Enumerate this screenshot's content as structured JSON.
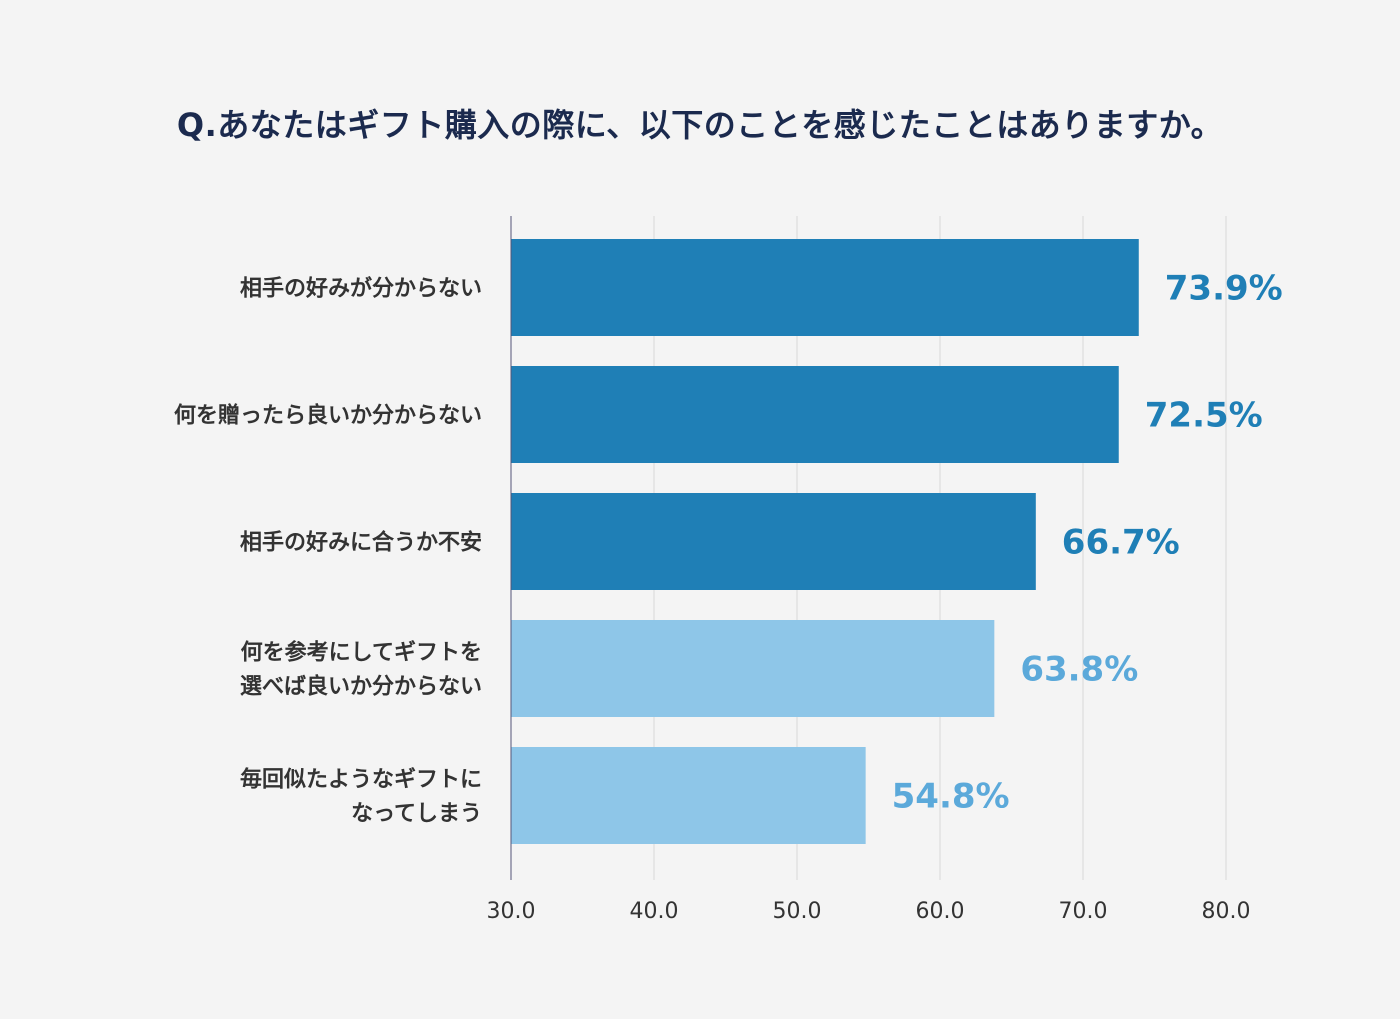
{
  "chart_data": {
    "type": "bar",
    "orientation": "horizontal",
    "title": "Q.あなたはギフト購入の際に、以下のことを感じたことはありますか。",
    "categories": [
      [
        "相手の好みが分からない"
      ],
      [
        "何を贈ったら良いか分からない"
      ],
      [
        "相手の好みに合うか不安"
      ],
      [
        "何を参考にしてギフトを",
        "選べば良いか分からない"
      ],
      [
        "毎回似たようなギフトに",
        "なってしまう"
      ]
    ],
    "values": [
      73.9,
      72.5,
      66.7,
      63.8,
      54.8
    ],
    "value_labels": [
      "73.9%",
      "72.5%",
      "66.7%",
      "63.8%",
      "54.8%"
    ],
    "highlighted": [
      true,
      true,
      true,
      false,
      false
    ],
    "xlim": [
      30,
      80
    ],
    "xticks": [
      "30.0",
      "40.0",
      "50.0",
      "60.0",
      "70.0",
      "80.0"
    ],
    "grid": true,
    "xlabel": "",
    "ylabel": "",
    "colors": {
      "bar_dark": "#1f7fb6",
      "bar_light": "#8ec6e8",
      "label_dark": "#1f7fb6",
      "label_light": "#5ba9da",
      "grid": "#d8d8d8",
      "axis": "#555577"
    }
  }
}
